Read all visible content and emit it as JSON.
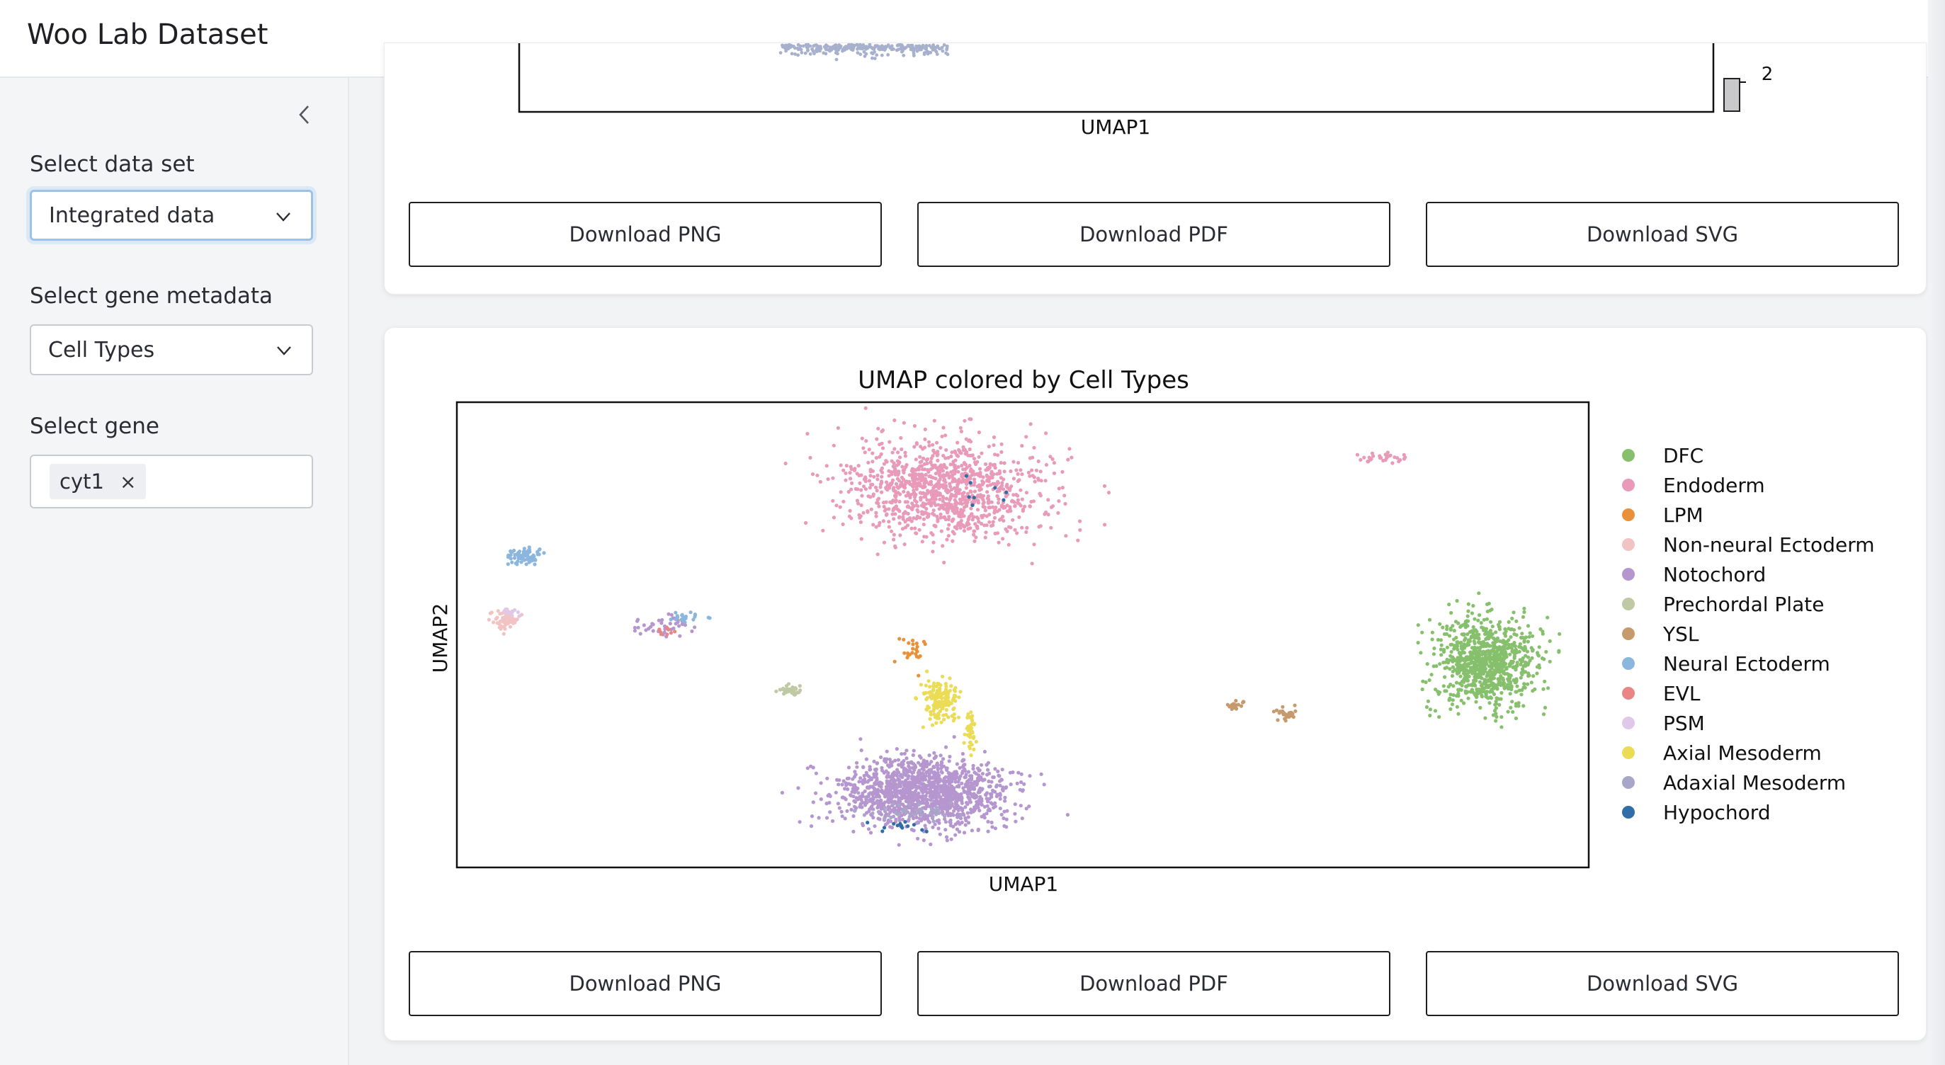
{
  "app": {
    "title": "Woo Lab Dataset"
  },
  "sidebar": {
    "collapse_icon": "chevron-left-icon",
    "dataset": {
      "label": "Select data set",
      "value": "Integrated data"
    },
    "metadata": {
      "label": "Select gene metadata",
      "value": "Cell Types"
    },
    "gene": {
      "label": "Select gene",
      "chips": [
        "cyt1"
      ],
      "remove_glyph": "×"
    }
  },
  "top_plot": {
    "xlabel": "UMAP1",
    "colorbar_tick": "2",
    "buttons": {
      "png": "Download PNG",
      "pdf": "Download PDF",
      "svg": "Download SVG"
    }
  },
  "umap_plot": {
    "buttons": {
      "png": "Download PNG",
      "pdf": "Download PDF",
      "svg": "Download SVG"
    }
  },
  "chart_data": {
    "type": "scatter",
    "title": "UMAP colored by Cell Types",
    "xlabel": "UMAP1",
    "ylabel": "UMAP2",
    "grid": false,
    "legend_placement": "right",
    "series": [
      {
        "name": "DFC",
        "color": "#86c06c",
        "clusters": [
          {
            "x": 15.0,
            "y": 4.3,
            "sx": 0.85,
            "sy": 0.8,
            "n": 900
          }
        ]
      },
      {
        "name": "Endoderm",
        "color": "#e89ab8",
        "clusters": [
          {
            "x": 4.2,
            "y": 8.0,
            "sx": 1.7,
            "sy": 0.9,
            "n": 1100
          },
          {
            "x": 13.0,
            "y": 8.7,
            "sx": 0.4,
            "sy": 0.1,
            "n": 30
          }
        ]
      },
      {
        "name": "LPM",
        "color": "#e8913a",
        "clusters": [
          {
            "x": 3.6,
            "y": 4.5,
            "sx": 0.2,
            "sy": 0.3,
            "n": 25
          }
        ]
      },
      {
        "name": "Non-neural Ectoderm",
        "color": "#f2c3c3",
        "clusters": [
          {
            "x": -4.6,
            "y": 5.2,
            "sx": 0.25,
            "sy": 0.15,
            "n": 70
          }
        ]
      },
      {
        "name": "Notochord",
        "color": "#b596cf",
        "clusters": [
          {
            "x": 3.8,
            "y": 1.5,
            "sx": 1.4,
            "sy": 0.6,
            "n": 1300
          },
          {
            "x": -1.5,
            "y": 5.1,
            "sx": 0.7,
            "sy": 0.2,
            "n": 40
          }
        ]
      },
      {
        "name": "Prechordal Plate",
        "color": "#bfc9a3",
        "clusters": [
          {
            "x": 1.1,
            "y": 3.7,
            "sx": 0.2,
            "sy": 0.1,
            "n": 40
          }
        ]
      },
      {
        "name": "YSL",
        "color": "#c79a6e",
        "clusters": [
          {
            "x": 10.0,
            "y": 3.4,
            "sx": 0.2,
            "sy": 0.1,
            "n": 20
          },
          {
            "x": 11.0,
            "y": 3.2,
            "sx": 0.2,
            "sy": 0.1,
            "n": 30
          }
        ]
      },
      {
        "name": "Neural Ectoderm",
        "color": "#8bb6dd",
        "clusters": [
          {
            "x": -4.2,
            "y": 6.6,
            "sx": 0.3,
            "sy": 0.15,
            "n": 80
          },
          {
            "x": -1.0,
            "y": 5.3,
            "sx": 0.3,
            "sy": 0.1,
            "n": 20
          }
        ]
      },
      {
        "name": "EVL",
        "color": "#ea8585",
        "clusters": [
          {
            "x": -1.3,
            "y": 5.0,
            "sx": 0.3,
            "sy": 0.1,
            "n": 10
          }
        ]
      },
      {
        "name": "PSM",
        "color": "#dfc8e8",
        "clusters": [
          {
            "x": -4.5,
            "y": 5.4,
            "sx": 0.2,
            "sy": 0.1,
            "n": 15
          }
        ]
      },
      {
        "name": "Axial Mesoderm",
        "color": "#ebdc55",
        "clusters": [
          {
            "x": 4.1,
            "y": 3.5,
            "sx": 0.3,
            "sy": 0.35,
            "n": 160
          },
          {
            "x": 4.7,
            "y": 2.8,
            "sx": 0.1,
            "sy": 0.3,
            "n": 40
          }
        ]
      },
      {
        "name": "Adaxial Mesoderm",
        "color": "#a9a6c9",
        "clusters": [
          {
            "x": 3.6,
            "y": 1.1,
            "sx": 0.8,
            "sy": 0.2,
            "n": 40
          }
        ]
      },
      {
        "name": "Hypochord",
        "color": "#2f6ea7",
        "clusters": [
          {
            "x": 3.2,
            "y": 0.8,
            "sx": 0.5,
            "sy": 0.1,
            "n": 14
          },
          {
            "x": 4.5,
            "y": 7.9,
            "sx": 0.8,
            "sy": 0.3,
            "n": 8
          }
        ]
      }
    ]
  }
}
